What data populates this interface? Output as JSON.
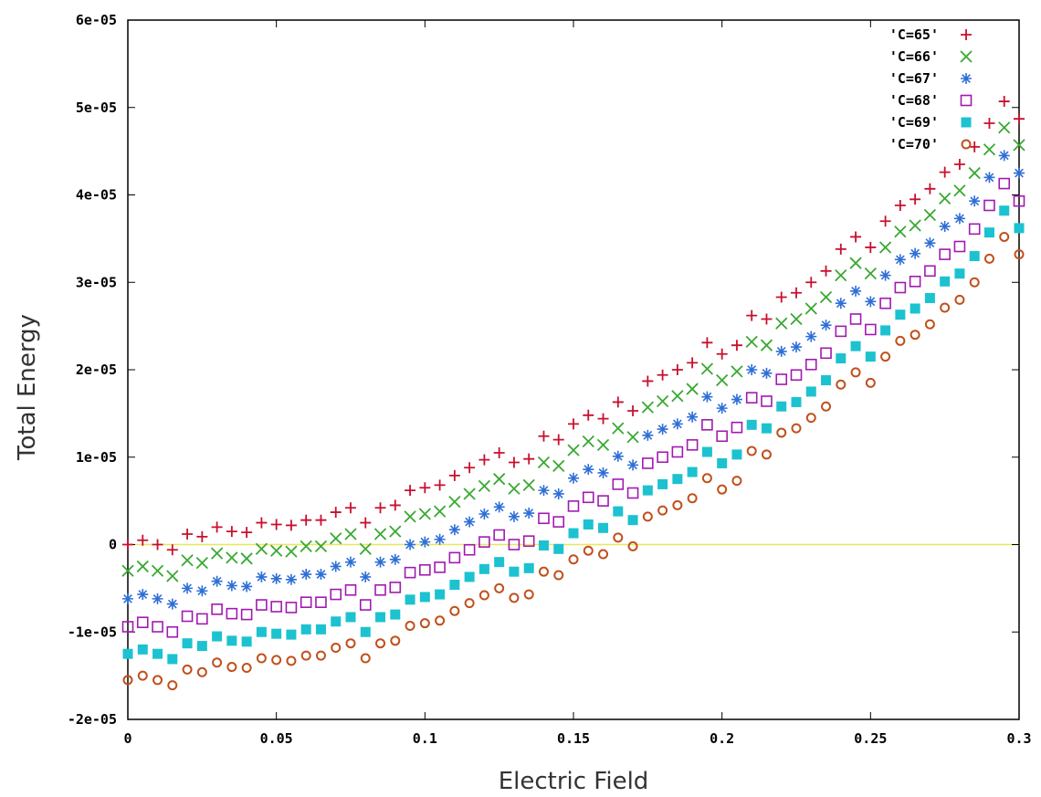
{
  "chart_data": {
    "type": "scatter",
    "xlabel": "Electric Field",
    "ylabel": "Total Energy",
    "xlim": [
      0,
      0.3
    ],
    "ylim": [
      -2e-05,
      6e-05
    ],
    "x_ticks": [
      {
        "value": 0,
        "label": "0"
      },
      {
        "value": 0.05,
        "label": "0.05"
      },
      {
        "value": 0.1,
        "label": "0.1"
      },
      {
        "value": 0.15,
        "label": "0.15"
      },
      {
        "value": 0.2,
        "label": "0.2"
      },
      {
        "value": 0.25,
        "label": "0.25"
      },
      {
        "value": 0.3,
        "label": "0.3"
      }
    ],
    "y_ticks": [
      {
        "value": -2e-05,
        "label": "-2e-05"
      },
      {
        "value": -1e-05,
        "label": "-1e-05"
      },
      {
        "value": 0,
        "label": "0"
      },
      {
        "value": 1e-05,
        "label": "1e-05"
      },
      {
        "value": 2e-05,
        "label": "2e-05"
      },
      {
        "value": 3e-05,
        "label": "3e-05"
      },
      {
        "value": 4e-05,
        "label": "4e-05"
      },
      {
        "value": 5e-05,
        "label": "5e-05"
      },
      {
        "value": 6e-05,
        "label": "6e-05"
      }
    ],
    "zero_line": {
      "y": 0,
      "color": "#e8e85a"
    },
    "legend_position": "top-right",
    "grid": false,
    "series": [
      {
        "name": "'C=65'",
        "marker": "plus",
        "color": "#c8102e",
        "offset": 0
      },
      {
        "name": "'C=66'",
        "marker": "cross",
        "color": "#3aa832",
        "offset": -3e-06
      },
      {
        "name": "'C=67'",
        "marker": "asterisk",
        "color": "#2e6fd6",
        "offset": -6.2e-06
      },
      {
        "name": "'C=68'",
        "marker": "open-square",
        "color": "#a11ab0",
        "offset": -9.4e-06
      },
      {
        "name": "'C=69'",
        "marker": "filled-square",
        "color": "#1cc2d0",
        "offset": -1.25e-05
      },
      {
        "name": "'C=70'",
        "marker": "open-circle",
        "color": "#c0501c",
        "offset": -1.55e-05
      }
    ],
    "x": [
      0,
      0.005,
      0.01,
      0.015,
      0.02,
      0.025,
      0.03,
      0.035,
      0.04,
      0.045,
      0.05,
      0.055,
      0.06,
      0.065,
      0.07,
      0.075,
      0.08,
      0.085,
      0.09,
      0.095,
      0.1,
      0.105,
      0.11,
      0.115,
      0.12,
      0.125,
      0.13,
      0.135,
      0.14,
      0.145,
      0.15,
      0.155,
      0.16,
      0.165,
      0.17,
      0.175,
      0.18,
      0.185,
      0.19,
      0.195,
      0.2,
      0.205,
      0.21,
      0.215,
      0.22,
      0.225,
      0.23,
      0.235,
      0.24,
      0.245,
      0.25,
      0.255,
      0.26,
      0.265,
      0.27,
      0.275,
      0.28,
      0.285,
      0.29,
      0.295,
      0.3
    ],
    "base_values": [
      0.0,
      5e-07,
      0.0,
      -6e-07,
      1.2e-06,
      9e-07,
      2e-06,
      1.5e-06,
      1.4e-06,
      2.5e-06,
      2.3e-06,
      2.2e-06,
      2.8e-06,
      2.8e-06,
      3.7e-06,
      4.2e-06,
      2.5e-06,
      4.2e-06,
      4.5e-06,
      6.2e-06,
      6.5e-06,
      6.8e-06,
      7.9e-06,
      8.8e-06,
      9.7e-06,
      1.05e-05,
      9.4e-06,
      9.8e-06,
      1.24e-05,
      1.2e-05,
      1.38e-05,
      1.48e-05,
      1.44e-05,
      1.63e-05,
      1.53e-05,
      1.87e-05,
      1.94e-05,
      2e-05,
      2.08e-05,
      2.31e-05,
      2.18e-05,
      2.28e-05,
      2.62e-05,
      2.58e-05,
      2.83e-05,
      2.88e-05,
      3e-05,
      3.13e-05,
      3.38e-05,
      3.52e-05,
      3.4e-05,
      3.7e-05,
      3.88e-05,
      3.95e-05,
      4.07e-05,
      4.26e-05,
      4.35e-05,
      4.55e-05,
      4.82e-05,
      5.07e-05,
      4.87e-05
    ]
  },
  "legend": {
    "entries": [
      "'C=65'",
      "'C=66'",
      "'C=67'",
      "'C=68'",
      "'C=69'",
      "'C=70'"
    ]
  }
}
